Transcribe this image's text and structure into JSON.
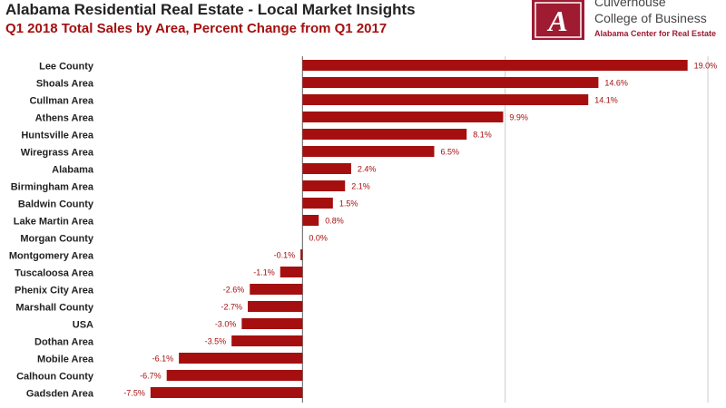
{
  "header": {
    "title": "Alabama Residential Real Estate - Local Market Insights",
    "subtitle": "Q1 2018 Total Sales by Area, Percent Change from Q1 2017"
  },
  "logo": {
    "line1": "Culverhouse",
    "line2": "College of Business",
    "line3": "Alabama Center for Real Estate",
    "glyph": "A",
    "color": "#9e1b32"
  },
  "colors": {
    "bar": "#a50f0f",
    "subtitle": "#a50f0f",
    "value_label": "#a50f0f",
    "category_label": "#222222",
    "grid": "#cccccc"
  },
  "chart_data": {
    "type": "bar",
    "orientation": "horizontal",
    "title": "Alabama Residential Real Estate - Local Market Insights",
    "subtitle": "Q1 2018 Total Sales by Area, Percent Change from Q1 2017",
    "categories": [
      "Lee County",
      "Shoals Area",
      "Cullman Area",
      "Athens Area",
      "Huntsville Area",
      "Wiregrass Area",
      "Alabama",
      "Birmingham Area",
      "Baldwin County",
      "Lake Martin Area",
      "Morgan County",
      "Montgomery Area",
      "Tuscaloosa Area",
      "Phenix City Area",
      "Marshall County",
      "USA",
      "Dothan Area",
      "Mobile Area",
      "Calhoun County",
      "Gadsden Area"
    ],
    "values": [
      19.0,
      14.6,
      14.1,
      9.9,
      8.1,
      6.5,
      2.4,
      2.1,
      1.5,
      0.8,
      0.0,
      -0.1,
      -1.1,
      -2.6,
      -2.7,
      -3.0,
      -3.5,
      -6.1,
      -6.7,
      -7.5
    ],
    "value_labels": [
      "19.0%",
      "14.6%",
      "14.1%",
      "9.9%",
      "8.1%",
      "6.5%",
      "2.4%",
      "2.1%",
      "1.5%",
      "0.8%",
      "0.0%",
      "-0.1%",
      "-1.1%",
      "-2.6%",
      "-2.7%",
      "-3.0%",
      "-3.5%",
      "-6.1%",
      "-6.7%",
      "-7.5%"
    ],
    "xlim": [
      -10,
      20
    ],
    "grid": true
  }
}
